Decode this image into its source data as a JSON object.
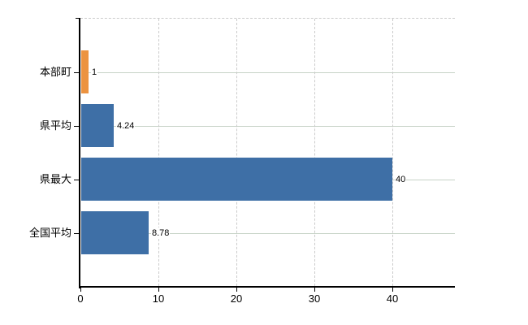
{
  "chart_data": {
    "type": "bar",
    "orientation": "horizontal",
    "title": "",
    "xlabel": "",
    "ylabel": "",
    "categories": [
      "本部町",
      "県平均",
      "県最大",
      "全国平均"
    ],
    "values": [
      1,
      4.24,
      40,
      8.78
    ],
    "value_labels": [
      "1",
      "4.24",
      "40",
      "8.78"
    ],
    "x_ticks": [
      "0",
      "10",
      "20",
      "30",
      "40"
    ],
    "x_tick_values": [
      0,
      10,
      20,
      30,
      40
    ],
    "xlim": [
      0,
      48
    ],
    "grid": true,
    "legend": false,
    "bar_colors": [
      "#EC9340",
      "#3E6FA6",
      "#3E6FA6",
      "#3E6FA6"
    ]
  },
  "colors": {
    "highlight_bar": "#EC9340",
    "default_bar": "#3E6FA6",
    "axis": "#000000",
    "vertical_grid": "#CBCBCB",
    "horizontal_grid": "#C7D3C7",
    "background": "#FFFFFF",
    "text": "#000000"
  }
}
